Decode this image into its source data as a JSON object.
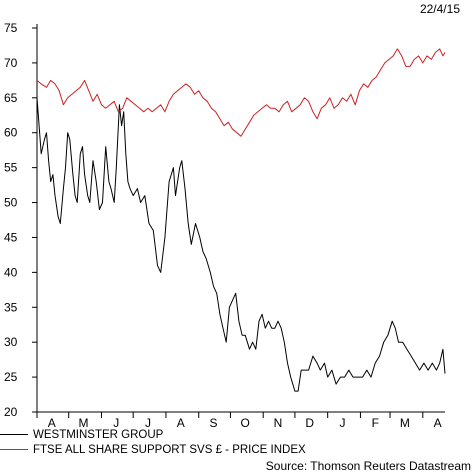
{
  "date_label": "22/4/15",
  "source": "Source: Thomson Reuters Datastream",
  "colors": {
    "westminster": "#000000",
    "ftse": "#cc2222",
    "axis": "#000000"
  },
  "chart_data": {
    "type": "line",
    "title": "",
    "xlabel": "",
    "ylabel": "",
    "ylim": [
      20,
      75
    ],
    "yticks": [
      20,
      25,
      30,
      35,
      40,
      45,
      50,
      55,
      60,
      65,
      70,
      75
    ],
    "x_range": [
      "2014-04-01",
      "2015-04-22"
    ],
    "xticks": [
      {
        "label": "A",
        "date": "2014-04-15"
      },
      {
        "label": "M",
        "date": "2014-05-15"
      },
      {
        "label": "J",
        "date": "2014-06-15"
      },
      {
        "label": "J",
        "date": "2014-07-15"
      },
      {
        "label": "A",
        "date": "2014-08-15"
      },
      {
        "label": "S",
        "date": "2014-09-15"
      },
      {
        "label": "O",
        "date": "2014-10-15"
      },
      {
        "label": "N",
        "date": "2014-11-15"
      },
      {
        "label": "D",
        "date": "2014-12-15"
      },
      {
        "label": "J",
        "date": "2015-01-15"
      },
      {
        "label": "F",
        "date": "2015-02-15"
      },
      {
        "label": "M",
        "date": "2015-03-15"
      },
      {
        "label": "A",
        "date": "2015-04-15"
      }
    ],
    "grid": false,
    "legend": "bottom-left",
    "series": [
      {
        "name": "WESTMINSTER GROUP",
        "color": "#000000",
        "points": [
          [
            "2014-04-01",
            65
          ],
          [
            "2014-04-03",
            61
          ],
          [
            "2014-04-05",
            57
          ],
          [
            "2014-04-08",
            59
          ],
          [
            "2014-04-10",
            60
          ],
          [
            "2014-04-12",
            56
          ],
          [
            "2014-04-14",
            53
          ],
          [
            "2014-04-16",
            54
          ],
          [
            "2014-04-18",
            51
          ],
          [
            "2014-04-21",
            48
          ],
          [
            "2014-04-23",
            47
          ],
          [
            "2014-04-26",
            52
          ],
          [
            "2014-04-28",
            55
          ],
          [
            "2014-04-30",
            60
          ],
          [
            "2014-05-02",
            59
          ],
          [
            "2014-05-05",
            54
          ],
          [
            "2014-05-07",
            51
          ],
          [
            "2014-05-09",
            50
          ],
          [
            "2014-05-12",
            57
          ],
          [
            "2014-05-14",
            58
          ],
          [
            "2014-05-16",
            54
          ],
          [
            "2014-05-19",
            51
          ],
          [
            "2014-05-21",
            50
          ],
          [
            "2014-05-24",
            56
          ],
          [
            "2014-05-27",
            53
          ],
          [
            "2014-05-30",
            49
          ],
          [
            "2014-06-02",
            50
          ],
          [
            "2014-06-05",
            58
          ],
          [
            "2014-06-08",
            53
          ],
          [
            "2014-06-10",
            52
          ],
          [
            "2014-06-13",
            50
          ],
          [
            "2014-06-15",
            55
          ],
          [
            "2014-06-18",
            64
          ],
          [
            "2014-06-20",
            61
          ],
          [
            "2014-06-22",
            63
          ],
          [
            "2014-06-24",
            57
          ],
          [
            "2014-06-26",
            53
          ],
          [
            "2014-06-28",
            52
          ],
          [
            "2014-07-01",
            51
          ],
          [
            "2014-07-05",
            52
          ],
          [
            "2014-07-08",
            50
          ],
          [
            "2014-07-12",
            51
          ],
          [
            "2014-07-16",
            47
          ],
          [
            "2014-07-20",
            46
          ],
          [
            "2014-07-24",
            41
          ],
          [
            "2014-07-27",
            40
          ],
          [
            "2014-07-31",
            45
          ],
          [
            "2014-08-04",
            53
          ],
          [
            "2014-08-08",
            55
          ],
          [
            "2014-08-10",
            51
          ],
          [
            "2014-08-14",
            55
          ],
          [
            "2014-08-16",
            56
          ],
          [
            "2014-08-19",
            52
          ],
          [
            "2014-08-22",
            47
          ],
          [
            "2014-08-25",
            44
          ],
          [
            "2014-08-29",
            47
          ],
          [
            "2014-09-02",
            45
          ],
          [
            "2014-09-05",
            43
          ],
          [
            "2014-09-08",
            42
          ],
          [
            "2014-09-12",
            40
          ],
          [
            "2014-09-15",
            38
          ],
          [
            "2014-09-18",
            37
          ],
          [
            "2014-09-21",
            34
          ],
          [
            "2014-09-24",
            32
          ],
          [
            "2014-09-27",
            30
          ],
          [
            "2014-09-30",
            35
          ],
          [
            "2014-10-03",
            36
          ],
          [
            "2014-10-06",
            37
          ],
          [
            "2014-10-09",
            33
          ],
          [
            "2014-10-12",
            31
          ],
          [
            "2014-10-15",
            31
          ],
          [
            "2014-10-19",
            29
          ],
          [
            "2014-10-22",
            30
          ],
          [
            "2014-10-25",
            29
          ],
          [
            "2014-10-28",
            33
          ],
          [
            "2014-10-31",
            34
          ],
          [
            "2014-11-03",
            32
          ],
          [
            "2014-11-06",
            33
          ],
          [
            "2014-11-09",
            32
          ],
          [
            "2014-11-12",
            32
          ],
          [
            "2014-11-15",
            33
          ],
          [
            "2014-11-18",
            32
          ],
          [
            "2014-11-21",
            30
          ],
          [
            "2014-11-24",
            27
          ],
          [
            "2014-11-27",
            25
          ],
          [
            "2014-12-01",
            23
          ],
          [
            "2014-12-04",
            23
          ],
          [
            "2014-12-07",
            26
          ],
          [
            "2014-12-10",
            26
          ],
          [
            "2014-12-14",
            26
          ],
          [
            "2014-12-18",
            28
          ],
          [
            "2014-12-22",
            27
          ],
          [
            "2014-12-25",
            26
          ],
          [
            "2014-12-29",
            27
          ],
          [
            "2015-01-01",
            25
          ],
          [
            "2015-01-05",
            26
          ],
          [
            "2015-01-09",
            24
          ],
          [
            "2015-01-13",
            25
          ],
          [
            "2015-01-17",
            25
          ],
          [
            "2015-01-21",
            26
          ],
          [
            "2015-01-25",
            25
          ],
          [
            "2015-01-29",
            25
          ],
          [
            "2015-02-03",
            25
          ],
          [
            "2015-02-07",
            26
          ],
          [
            "2015-02-11",
            25
          ],
          [
            "2015-02-15",
            27
          ],
          [
            "2015-02-19",
            28
          ],
          [
            "2015-02-23",
            30
          ],
          [
            "2015-02-27",
            31
          ],
          [
            "2015-03-03",
            33
          ],
          [
            "2015-03-06",
            32
          ],
          [
            "2015-03-09",
            30
          ],
          [
            "2015-03-13",
            30
          ],
          [
            "2015-03-17",
            29
          ],
          [
            "2015-03-21",
            28
          ],
          [
            "2015-03-25",
            27
          ],
          [
            "2015-03-29",
            26
          ],
          [
            "2015-04-02",
            27
          ],
          [
            "2015-04-06",
            26
          ],
          [
            "2015-04-10",
            27
          ],
          [
            "2015-04-14",
            26
          ],
          [
            "2015-04-17",
            27
          ],
          [
            "2015-04-20",
            29
          ],
          [
            "2015-04-22",
            25.5
          ]
        ]
      },
      {
        "name": "FTSE ALL SHARE SUPPORT SVS £ - PRICE INDEX",
        "color": "#cc2222",
        "points": [
          [
            "2014-04-01",
            67.5
          ],
          [
            "2014-04-05",
            67
          ],
          [
            "2014-04-10",
            66.5
          ],
          [
            "2014-04-14",
            67.5
          ],
          [
            "2014-04-18",
            67
          ],
          [
            "2014-04-22",
            66
          ],
          [
            "2014-04-26",
            64
          ],
          [
            "2014-04-30",
            65
          ],
          [
            "2014-05-04",
            65.5
          ],
          [
            "2014-05-08",
            66
          ],
          [
            "2014-05-12",
            66.5
          ],
          [
            "2014-05-16",
            67.5
          ],
          [
            "2014-05-20",
            66
          ],
          [
            "2014-05-24",
            64.5
          ],
          [
            "2014-05-28",
            65.5
          ],
          [
            "2014-06-01",
            64
          ],
          [
            "2014-06-05",
            63.5
          ],
          [
            "2014-06-09",
            64
          ],
          [
            "2014-06-13",
            64.5
          ],
          [
            "2014-06-17",
            63
          ],
          [
            "2014-06-21",
            63.5
          ],
          [
            "2014-06-25",
            65
          ],
          [
            "2014-06-29",
            64.5
          ],
          [
            "2014-07-03",
            64
          ],
          [
            "2014-07-07",
            63.5
          ],
          [
            "2014-07-11",
            63
          ],
          [
            "2014-07-15",
            63.5
          ],
          [
            "2014-07-19",
            63
          ],
          [
            "2014-07-23",
            63.5
          ],
          [
            "2014-07-27",
            64
          ],
          [
            "2014-07-31",
            63
          ],
          [
            "2014-08-04",
            64.5
          ],
          [
            "2014-08-08",
            65.5
          ],
          [
            "2014-08-12",
            66
          ],
          [
            "2014-08-16",
            66.5
          ],
          [
            "2014-08-20",
            67
          ],
          [
            "2014-08-24",
            66.5
          ],
          [
            "2014-08-28",
            65.5
          ],
          [
            "2014-09-01",
            66
          ],
          [
            "2014-09-05",
            65
          ],
          [
            "2014-09-09",
            64.5
          ],
          [
            "2014-09-13",
            63.5
          ],
          [
            "2014-09-17",
            63
          ],
          [
            "2014-09-21",
            62
          ],
          [
            "2014-09-25",
            61
          ],
          [
            "2014-09-29",
            61.5
          ],
          [
            "2014-10-03",
            60.5
          ],
          [
            "2014-10-07",
            60
          ],
          [
            "2014-10-11",
            59.5
          ],
          [
            "2014-10-15",
            60.5
          ],
          [
            "2014-10-19",
            61.5
          ],
          [
            "2014-10-23",
            62.5
          ],
          [
            "2014-10-27",
            63
          ],
          [
            "2014-10-31",
            63.5
          ],
          [
            "2014-11-04",
            64
          ],
          [
            "2014-11-08",
            63.5
          ],
          [
            "2014-11-12",
            63.5
          ],
          [
            "2014-11-16",
            63
          ],
          [
            "2014-11-20",
            64
          ],
          [
            "2014-11-24",
            64.5
          ],
          [
            "2014-11-28",
            63
          ],
          [
            "2014-12-02",
            63.5
          ],
          [
            "2014-12-06",
            64
          ],
          [
            "2014-12-10",
            65
          ],
          [
            "2014-12-14",
            64.5
          ],
          [
            "2014-12-18",
            63
          ],
          [
            "2014-12-22",
            62
          ],
          [
            "2014-12-26",
            63.5
          ],
          [
            "2014-12-30",
            64
          ],
          [
            "2015-01-03",
            65
          ],
          [
            "2015-01-07",
            63.5
          ],
          [
            "2015-01-11",
            64
          ],
          [
            "2015-01-15",
            65
          ],
          [
            "2015-01-19",
            64.5
          ],
          [
            "2015-01-23",
            65.5
          ],
          [
            "2015-01-27",
            64
          ],
          [
            "2015-01-31",
            66
          ],
          [
            "2015-02-04",
            67
          ],
          [
            "2015-02-08",
            66.5
          ],
          [
            "2015-02-12",
            67.5
          ],
          [
            "2015-02-16",
            68
          ],
          [
            "2015-02-20",
            69
          ],
          [
            "2015-02-24",
            70
          ],
          [
            "2015-02-28",
            70.5
          ],
          [
            "2015-03-04",
            71
          ],
          [
            "2015-03-08",
            72
          ],
          [
            "2015-03-12",
            71
          ],
          [
            "2015-03-16",
            69.5
          ],
          [
            "2015-03-20",
            69.5
          ],
          [
            "2015-03-24",
            70.5
          ],
          [
            "2015-03-28",
            71
          ],
          [
            "2015-04-01",
            70
          ],
          [
            "2015-04-05",
            71
          ],
          [
            "2015-04-09",
            70.5
          ],
          [
            "2015-04-13",
            71.5
          ],
          [
            "2015-04-17",
            72
          ],
          [
            "2015-04-20",
            71
          ],
          [
            "2015-04-22",
            71.5
          ]
        ]
      }
    ]
  }
}
